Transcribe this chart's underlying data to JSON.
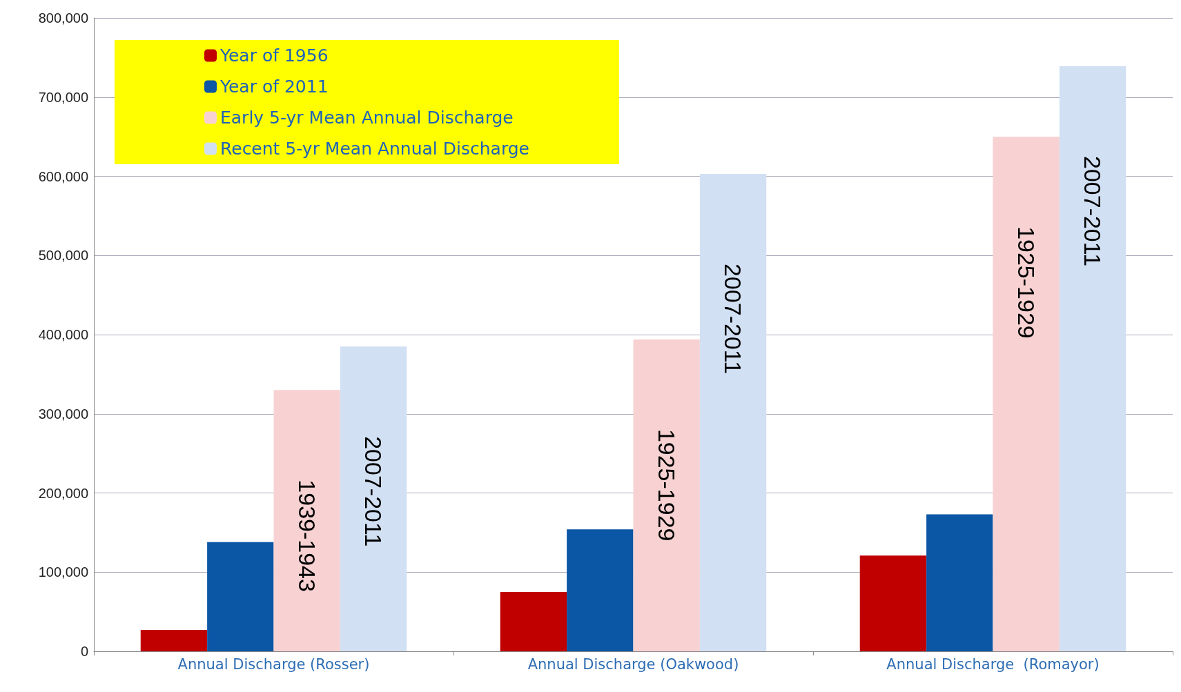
{
  "chart_data": {
    "type": "bar",
    "categories": [
      "Annual Discharge (Rosser)",
      "Annual Discharge (Oakwood)",
      "Annual Discharge  (Romayor)"
    ],
    "series": [
      {
        "name": "Year of 1956",
        "color": "#c00000",
        "values": [
          27000,
          75000,
          121000
        ]
      },
      {
        "name": "Year of 2011",
        "color": "#0b56a5",
        "values": [
          138000,
          154000,
          173000
        ]
      },
      {
        "name": "Early 5-yr Mean Annual Discharge",
        "color": "#f8d2d2",
        "values": [
          330000,
          394000,
          650000
        ],
        "value_labels": [
          "1939-1943",
          "1925-1929",
          "1925-1929"
        ]
      },
      {
        "name": "Recent 5-yr Mean Annual Discharge",
        "color": "#d2e0f4",
        "values": [
          385000,
          603000,
          739000
        ],
        "value_labels": [
          "2007-2011",
          "2007-2011",
          "2007-2011"
        ]
      }
    ],
    "ylim": [
      0,
      800000
    ],
    "yticks": [
      0,
      {
        "value": 100000,
        "label": "100,000"
      },
      {
        "value": 200000,
        "label": "200,000"
      },
      {
        "value": 300000,
        "label": "300,000"
      },
      {
        "value": 400000,
        "label": "400,000"
      },
      {
        "value": 500000,
        "label": "500,000"
      },
      {
        "value": 600000,
        "label": "600,000"
      },
      {
        "value": 700000,
        "label": "700,000"
      },
      {
        "value": 800000,
        "label": "800,000"
      }
    ],
    "grid": "y",
    "legend": "top left"
  }
}
